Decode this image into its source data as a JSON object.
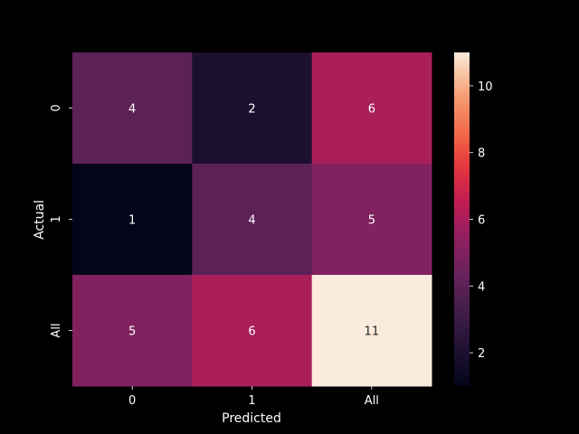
{
  "chart_data": {
    "type": "heatmap",
    "title": "",
    "xlabel": "Predicted",
    "ylabel": "Actual",
    "x_categories": [
      "0",
      "1",
      "All"
    ],
    "y_categories": [
      "0",
      "1",
      "All"
    ],
    "values": [
      [
        4,
        2,
        6
      ],
      [
        1,
        4,
        5
      ],
      [
        5,
        6,
        11
      ]
    ],
    "colorbar": {
      "range": [
        1,
        11
      ],
      "ticks": [
        2,
        4,
        6,
        8,
        10
      ],
      "colormap": "rocket"
    },
    "grid": false,
    "legend": "none"
  },
  "colors": {
    "background": "#000000",
    "text": "#ffffff"
  }
}
